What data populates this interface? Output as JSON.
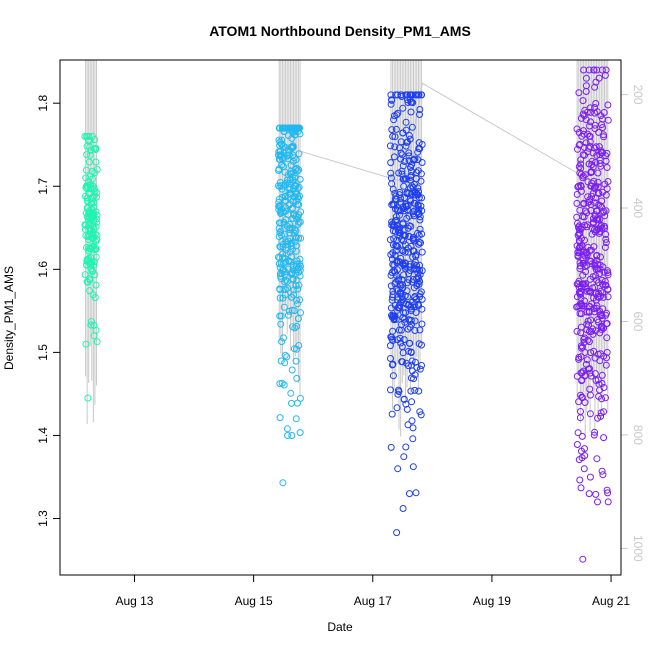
{
  "chart_data": {
    "type": "scatter",
    "title": "ATOM1 Northbound Density_PM1_AMS",
    "xlabel": "Date",
    "ylabel": "Density_PM1_AMS",
    "y2label": "",
    "xlim": [
      "2016-08-11T18:00",
      "2016-08-21T04:00"
    ],
    "ylim": [
      1.232,
      1.852
    ],
    "y2lim": [
      1047.0,
      139.0
    ],
    "y2_reversed": true,
    "grid": false,
    "legend": "none",
    "x_ticks": [
      {
        "date": "2016-08-13",
        "label": "Aug 13"
      },
      {
        "date": "2016-08-15",
        "label": "Aug 15"
      },
      {
        "date": "2016-08-17",
        "label": "Aug 17"
      },
      {
        "date": "2016-08-19",
        "label": "Aug 19"
      },
      {
        "date": "2016-08-21",
        "label": "Aug 21"
      }
    ],
    "y_ticks": [
      {
        "value": 1.3,
        "label": "1.3"
      },
      {
        "value": 1.4,
        "label": "1.4"
      },
      {
        "value": 1.5,
        "label": "1.5"
      },
      {
        "value": 1.6,
        "label": "1.6"
      },
      {
        "value": 1.7,
        "label": "1.7"
      },
      {
        "value": 1.8,
        "label": "1.8"
      }
    ],
    "y2_ticks": [
      {
        "value": 200,
        "label": "200"
      },
      {
        "value": 400,
        "label": "400"
      },
      {
        "value": 600,
        "label": "600"
      },
      {
        "value": 800,
        "label": "800"
      },
      {
        "value": 1000,
        "label": "1000"
      }
    ],
    "link_line": {
      "color": "#c8c8c8",
      "points": [
        {
          "date": "2016-08-15T19:00",
          "y2": 300
        },
        {
          "date": "2016-08-17T13:00",
          "y2": 355
        },
        {
          "date": "2016-08-17T20:00",
          "y2": 180
        },
        {
          "date": "2016-08-20T11:00",
          "y2": 340
        }
      ]
    },
    "series": [
      {
        "color": "#1ef5b0",
        "start": "2016-08-12T04:00",
        "end": "2016-08-12T09:00",
        "y_range": [
          1.51,
          1.76
        ],
        "y_center": 1.66,
        "outliers": [
          1.445,
          1.533,
          1.52
        ],
        "count": 150,
        "drop_y2_top": 139,
        "drop_y2_bottom": [
          730,
          790,
          810
        ],
        "seed": 11
      },
      {
        "color": "#22b8f0",
        "start": "2016-08-15T10:00",
        "end": "2016-08-15T19:00",
        "y_range": [
          1.4,
          1.77
        ],
        "y_center": 1.66,
        "outliers": [
          1.343,
          1.408,
          1.4,
          1.42
        ],
        "count": 320,
        "drop_y2_top": 139,
        "drop_y2_bottom": [
          680,
          720,
          760
        ],
        "seed": 23
      },
      {
        "color": "#1f3ff0",
        "start": "2016-08-17T07:00",
        "end": "2016-08-17T20:00",
        "y_range": [
          1.36,
          1.81
        ],
        "y_center": 1.63,
        "outliers": [
          1.283,
          1.312,
          1.33,
          1.331
        ],
        "count": 430,
        "drop_y2_top": 139,
        "drop_y2_bottom": [
          760,
          800,
          815
        ],
        "seed": 37
      },
      {
        "color": "#7a1ff0",
        "start": "2016-08-20T10:00",
        "end": "2016-08-20T23:00",
        "y_range": [
          1.32,
          1.84
        ],
        "y_center": 1.62,
        "outliers": [
          1.251,
          1.33,
          1.329,
          1.357
        ],
        "count": 430,
        "drop_y2_top": 139,
        "drop_y2_bottom": [
          770,
          800,
          810
        ],
        "seed": 53
      }
    ]
  }
}
